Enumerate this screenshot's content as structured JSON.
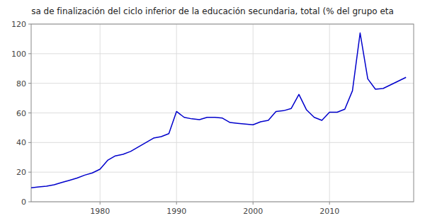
{
  "chart_data": {
    "type": "line",
    "title": "sa de finalización del ciclo inferior de la educación secundaria, total (% del grupo eta",
    "x": [
      1971,
      1972,
      1973,
      1974,
      1975,
      1976,
      1977,
      1978,
      1979,
      1980,
      1981,
      1982,
      1983,
      1984,
      1985,
      1986,
      1987,
      1988,
      1989,
      1990,
      1991,
      1992,
      1993,
      1994,
      1995,
      1996,
      1997,
      1998,
      1999,
      2000,
      2001,
      2002,
      2003,
      2004,
      2005,
      2006,
      2007,
      2008,
      2009,
      2010,
      2011,
      2012,
      2013,
      2014,
      2015,
      2016,
      2017,
      2018,
      2019,
      2020
    ],
    "values": [
      9.5,
      10.0,
      10.5,
      11.5,
      13.0,
      14.5,
      16.0,
      18.0,
      19.5,
      22.0,
      28.0,
      31.0,
      32.0,
      34.0,
      37.0,
      40.0,
      43.0,
      44.0,
      46.0,
      61.0,
      57.0,
      56.0,
      55.5,
      57.0,
      57.0,
      56.5,
      53.5,
      53.0,
      52.5,
      52.0,
      54.0,
      55.0,
      61.0,
      61.5,
      63.0,
      72.5,
      62.0,
      57.0,
      55.0,
      60.5,
      60.5,
      62.5,
      75.0,
      114.0,
      83.0,
      76.0,
      76.5,
      79.0,
      81.5,
      84.0
    ],
    "color": "#0000CC",
    "xlim": [
      1971,
      2021
    ],
    "ylim": [
      0,
      120
    ],
    "xticks": [
      1980,
      1990,
      2000,
      2010
    ],
    "yticks": [
      0,
      20,
      40,
      60,
      80,
      100,
      120
    ],
    "grid": true
  }
}
